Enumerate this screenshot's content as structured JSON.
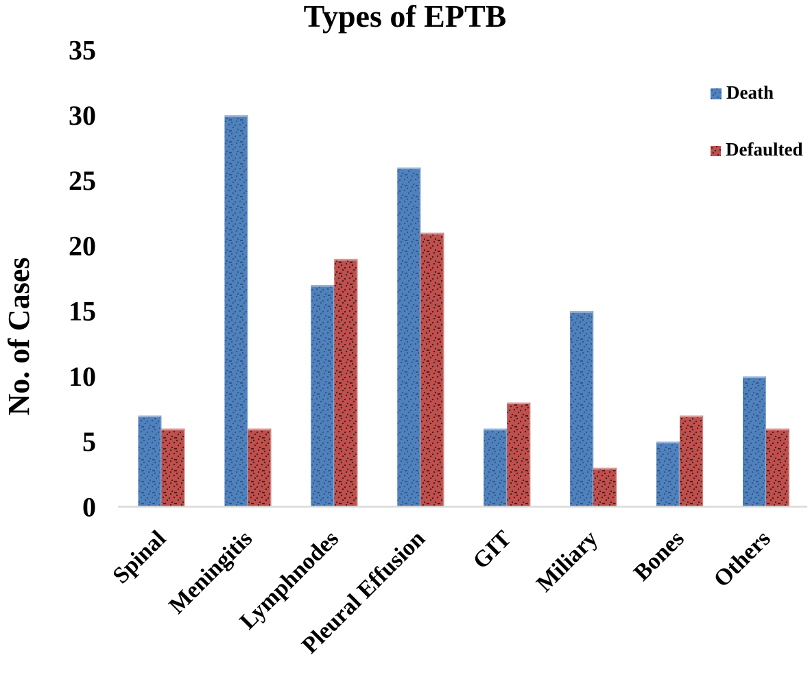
{
  "chart_data": {
    "type": "bar",
    "title": "Types of EPTB",
    "ylabel": "No. of Cases",
    "xlabel": "",
    "categories": [
      "Spinal",
      "Meningitis",
      "Lymphnodes",
      "Pleural Effusion",
      "GIT",
      "Miliary",
      "Bones",
      "Others"
    ],
    "series": [
      {
        "name": "Death",
        "color": "#4F81BD",
        "values": [
          7,
          30,
          17,
          26,
          6,
          15,
          5,
          10
        ]
      },
      {
        "name": "Defaulted",
        "color": "#C0504D",
        "values": [
          6,
          6,
          19,
          21,
          8,
          3,
          7,
          6
        ]
      }
    ],
    "ylim": [
      0,
      35
    ],
    "yticks": [
      0,
      5,
      10,
      15,
      20,
      25,
      30,
      35
    ],
    "grid": false,
    "legend_position": "right-top",
    "axis_line_color": "#D9D9D9",
    "bar_texture": "dotted"
  }
}
